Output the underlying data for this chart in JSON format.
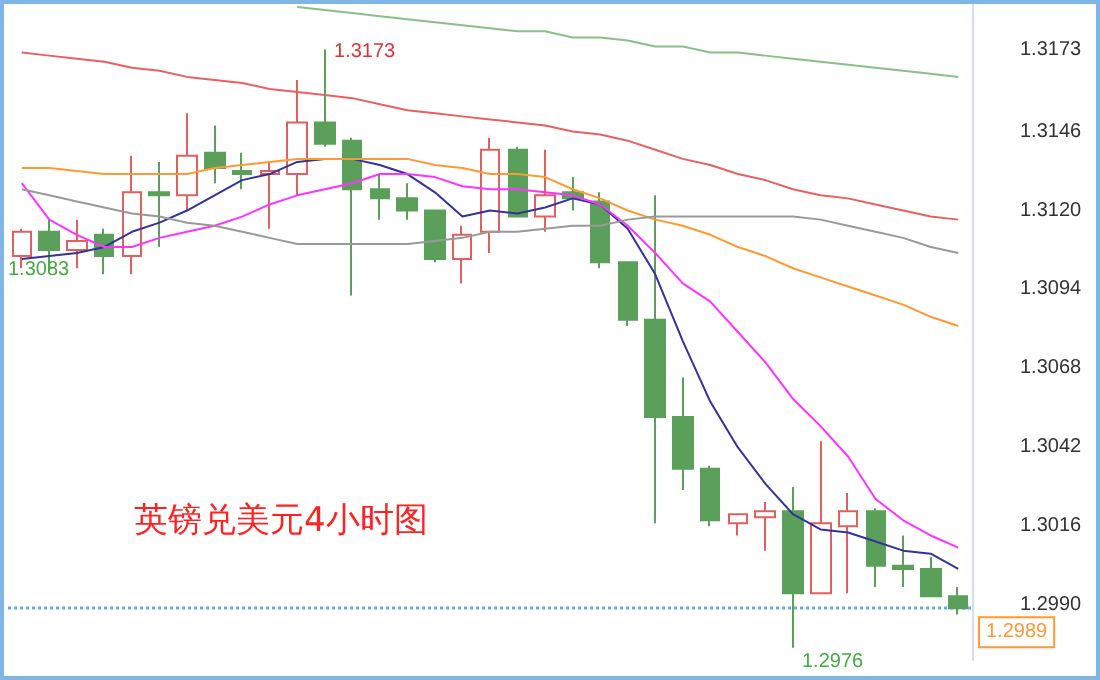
{
  "chart_data": {
    "type": "candlestick",
    "title": "英镑兑美元4小时图",
    "categories": [
      null,
      null,
      null,
      null,
      null,
      null,
      null,
      null,
      null,
      null,
      null,
      null,
      null,
      null,
      null,
      null,
      null,
      null,
      null,
      null,
      null,
      null,
      null,
      null,
      null,
      null,
      null,
      null,
      null,
      null,
      null,
      null,
      null,
      null,
      null
    ],
    "ohlc": [
      [
        1.3105,
        1.3114,
        1.3101,
        1.3113
      ],
      [
        1.3113,
        1.3117,
        1.31,
        1.3107
      ],
      [
        1.3107,
        1.3117,
        1.3101,
        1.311
      ],
      [
        1.3112,
        1.3114,
        1.3099,
        1.3105
      ],
      [
        1.3105,
        1.3138,
        1.3099,
        1.3126
      ],
      [
        1.3126,
        1.3136,
        1.3108,
        1.3125
      ],
      [
        1.3125,
        1.3152,
        1.312,
        1.3138
      ],
      [
        1.3139,
        1.3148,
        1.3129,
        1.3134
      ],
      [
        1.3133,
        1.3139,
        1.3127,
        1.3132
      ],
      [
        1.3132,
        1.3136,
        1.3114,
        1.3133
      ],
      [
        1.3132,
        1.3163,
        1.3125,
        1.3149
      ],
      [
        1.3149,
        1.3173,
        1.3141,
        1.3142
      ],
      [
        1.3143,
        1.3144,
        1.3092,
        1.3127
      ],
      [
        1.3127,
        1.3132,
        1.3117,
        1.3124
      ],
      [
        1.3124,
        1.3129,
        1.3117,
        1.312
      ],
      [
        1.312,
        1.312,
        1.3103,
        1.3104
      ],
      [
        1.3104,
        1.3115,
        1.3096,
        1.3112
      ],
      [
        1.3113,
        1.3144,
        1.3106,
        1.314
      ],
      [
        1.314,
        1.3141,
        1.3118,
        1.3118
      ],
      [
        1.3118,
        1.314,
        1.3113,
        1.3125
      ],
      [
        1.3126,
        1.3131,
        1.312,
        1.3124
      ],
      [
        1.3123,
        1.3126,
        1.3101,
        1.3103
      ],
      [
        1.3103,
        1.3103,
        1.3082,
        1.3084
      ],
      [
        1.3084,
        1.3125,
        1.3017,
        1.3052
      ],
      [
        1.3052,
        1.3065,
        1.3028,
        1.3035
      ],
      [
        1.3035,
        1.3036,
        1.3016,
        1.3018
      ],
      [
        1.3017,
        1.302,
        1.3013,
        1.302
      ],
      [
        1.3019,
        1.3024,
        1.3008,
        1.3021
      ],
      [
        1.3021,
        1.3029,
        1.2976,
        1.2994
      ],
      [
        1.2994,
        1.3044,
        1.2994,
        1.3017
      ],
      [
        1.3016,
        1.3027,
        1.2994,
        1.3021
      ],
      [
        1.3021,
        1.3022,
        1.2996,
        1.3003
      ],
      [
        1.3003,
        1.3013,
        1.2996,
        1.3002
      ],
      [
        1.3002,
        1.3006,
        1.2993,
        1.2993
      ],
      [
        1.2993,
        1.2996,
        1.2987,
        1.2989
      ]
    ],
    "series": [
      {
        "type": "line",
        "color": "#33339a",
        "values": [
          1.3104,
          1.3105,
          1.3106,
          1.3108,
          1.3113,
          1.3116,
          1.312,
          1.3125,
          1.313,
          1.3132,
          1.3136,
          1.3137,
          1.3137,
          1.3135,
          1.3132,
          1.3126,
          1.3118,
          1.312,
          1.3119,
          1.3121,
          1.3124,
          1.3122,
          1.3114,
          1.3099,
          1.3077,
          1.3057,
          1.3042,
          1.303,
          1.302,
          1.3015,
          1.3014,
          1.3011,
          1.3008,
          1.3007,
          1.3002
        ]
      },
      {
        "type": "line",
        "color": "#ff33ff",
        "values": [
          1.3129,
          1.3117,
          1.3112,
          1.3108,
          1.3108,
          1.3111,
          1.3113,
          1.3115,
          1.3118,
          1.3122,
          1.3125,
          1.3127,
          1.3129,
          1.3132,
          1.3132,
          1.3131,
          1.3128,
          1.3127,
          1.3127,
          1.3126,
          1.3125,
          1.3122,
          1.3115,
          1.3106,
          1.3096,
          1.309,
          1.308,
          1.307,
          1.3058,
          1.3049,
          1.3039,
          1.3025,
          1.3018,
          1.3013,
          1.3009
        ]
      },
      {
        "type": "line",
        "color": "#ff9933",
        "values": [
          1.3134,
          1.3134,
          1.3133,
          1.3132,
          1.3132,
          1.3132,
          1.3132,
          1.3134,
          1.3135,
          1.3136,
          1.3137,
          1.3137,
          1.3137,
          1.3137,
          1.3137,
          1.3135,
          1.3134,
          1.3132,
          1.3132,
          1.3131,
          1.3127,
          1.3124,
          1.312,
          1.3117,
          1.3115,
          1.3112,
          1.3108,
          1.3105,
          1.3101,
          1.3098,
          1.3095,
          1.3092,
          1.3089,
          1.3085,
          1.3082
        ]
      },
      {
        "type": "line",
        "color": "#999999",
        "values": [
          1.3127,
          1.3125,
          1.3123,
          1.3121,
          1.3119,
          1.3118,
          1.3116,
          1.3115,
          1.3113,
          1.3111,
          1.3109,
          1.3109,
          1.3109,
          1.3109,
          1.3109,
          1.311,
          1.3111,
          1.3113,
          1.3113,
          1.3114,
          1.3115,
          1.3115,
          1.3117,
          1.3118,
          1.3118,
          1.3118,
          1.3118,
          1.3118,
          1.3118,
          1.3117,
          1.3115,
          1.3113,
          1.3111,
          1.3108,
          1.3106
        ]
      },
      {
        "type": "line",
        "color": "#e86060",
        "values": [
          1.3172,
          1.3171,
          1.317,
          1.3169,
          1.3167,
          1.3166,
          1.3164,
          1.3163,
          1.3162,
          1.316,
          1.3159,
          1.3158,
          1.3157,
          1.3155,
          1.3153,
          1.3152,
          1.3151,
          1.315,
          1.3149,
          1.3148,
          1.3146,
          1.3145,
          1.3143,
          1.314,
          1.3137,
          1.3135,
          1.3132,
          1.313,
          1.3127,
          1.3125,
          1.3124,
          1.3122,
          1.312,
          1.3118,
          1.3117
        ]
      },
      {
        "type": "line",
        "color": "#88c088",
        "values": [
          null,
          null,
          null,
          null,
          null,
          null,
          null,
          null,
          null,
          null,
          1.3187,
          1.3186,
          1.3185,
          1.3184,
          1.3183,
          1.3182,
          1.3181,
          1.318,
          1.3179,
          1.3179,
          1.3177,
          1.3177,
          1.3176,
          1.3174,
          1.3174,
          1.3172,
          1.3172,
          1.3171,
          1.317,
          1.3169,
          1.3168,
          1.3167,
          1.3166,
          1.3165,
          1.3164
        ]
      }
    ],
    "ylim": [
      1.2972,
      1.3188
    ],
    "yticks": [
      {
        "value": 1.299,
        "label": "1.2990"
      },
      1.3016,
      1.3042,
      1.3068,
      1.3094,
      {
        "value": 1.312,
        "label": "1.3120"
      },
      1.3146,
      1.3173
    ],
    "grid": false,
    "marker": "none",
    "ref_lines": [
      {
        "axis": "y",
        "value": 1.2989,
        "label": "1.2989",
        "color": "#66aaee",
        "line_style": "dotted"
      }
    ],
    "annotations": [
      "1.3173",
      "1.2976",
      "1.3083"
    ]
  }
}
